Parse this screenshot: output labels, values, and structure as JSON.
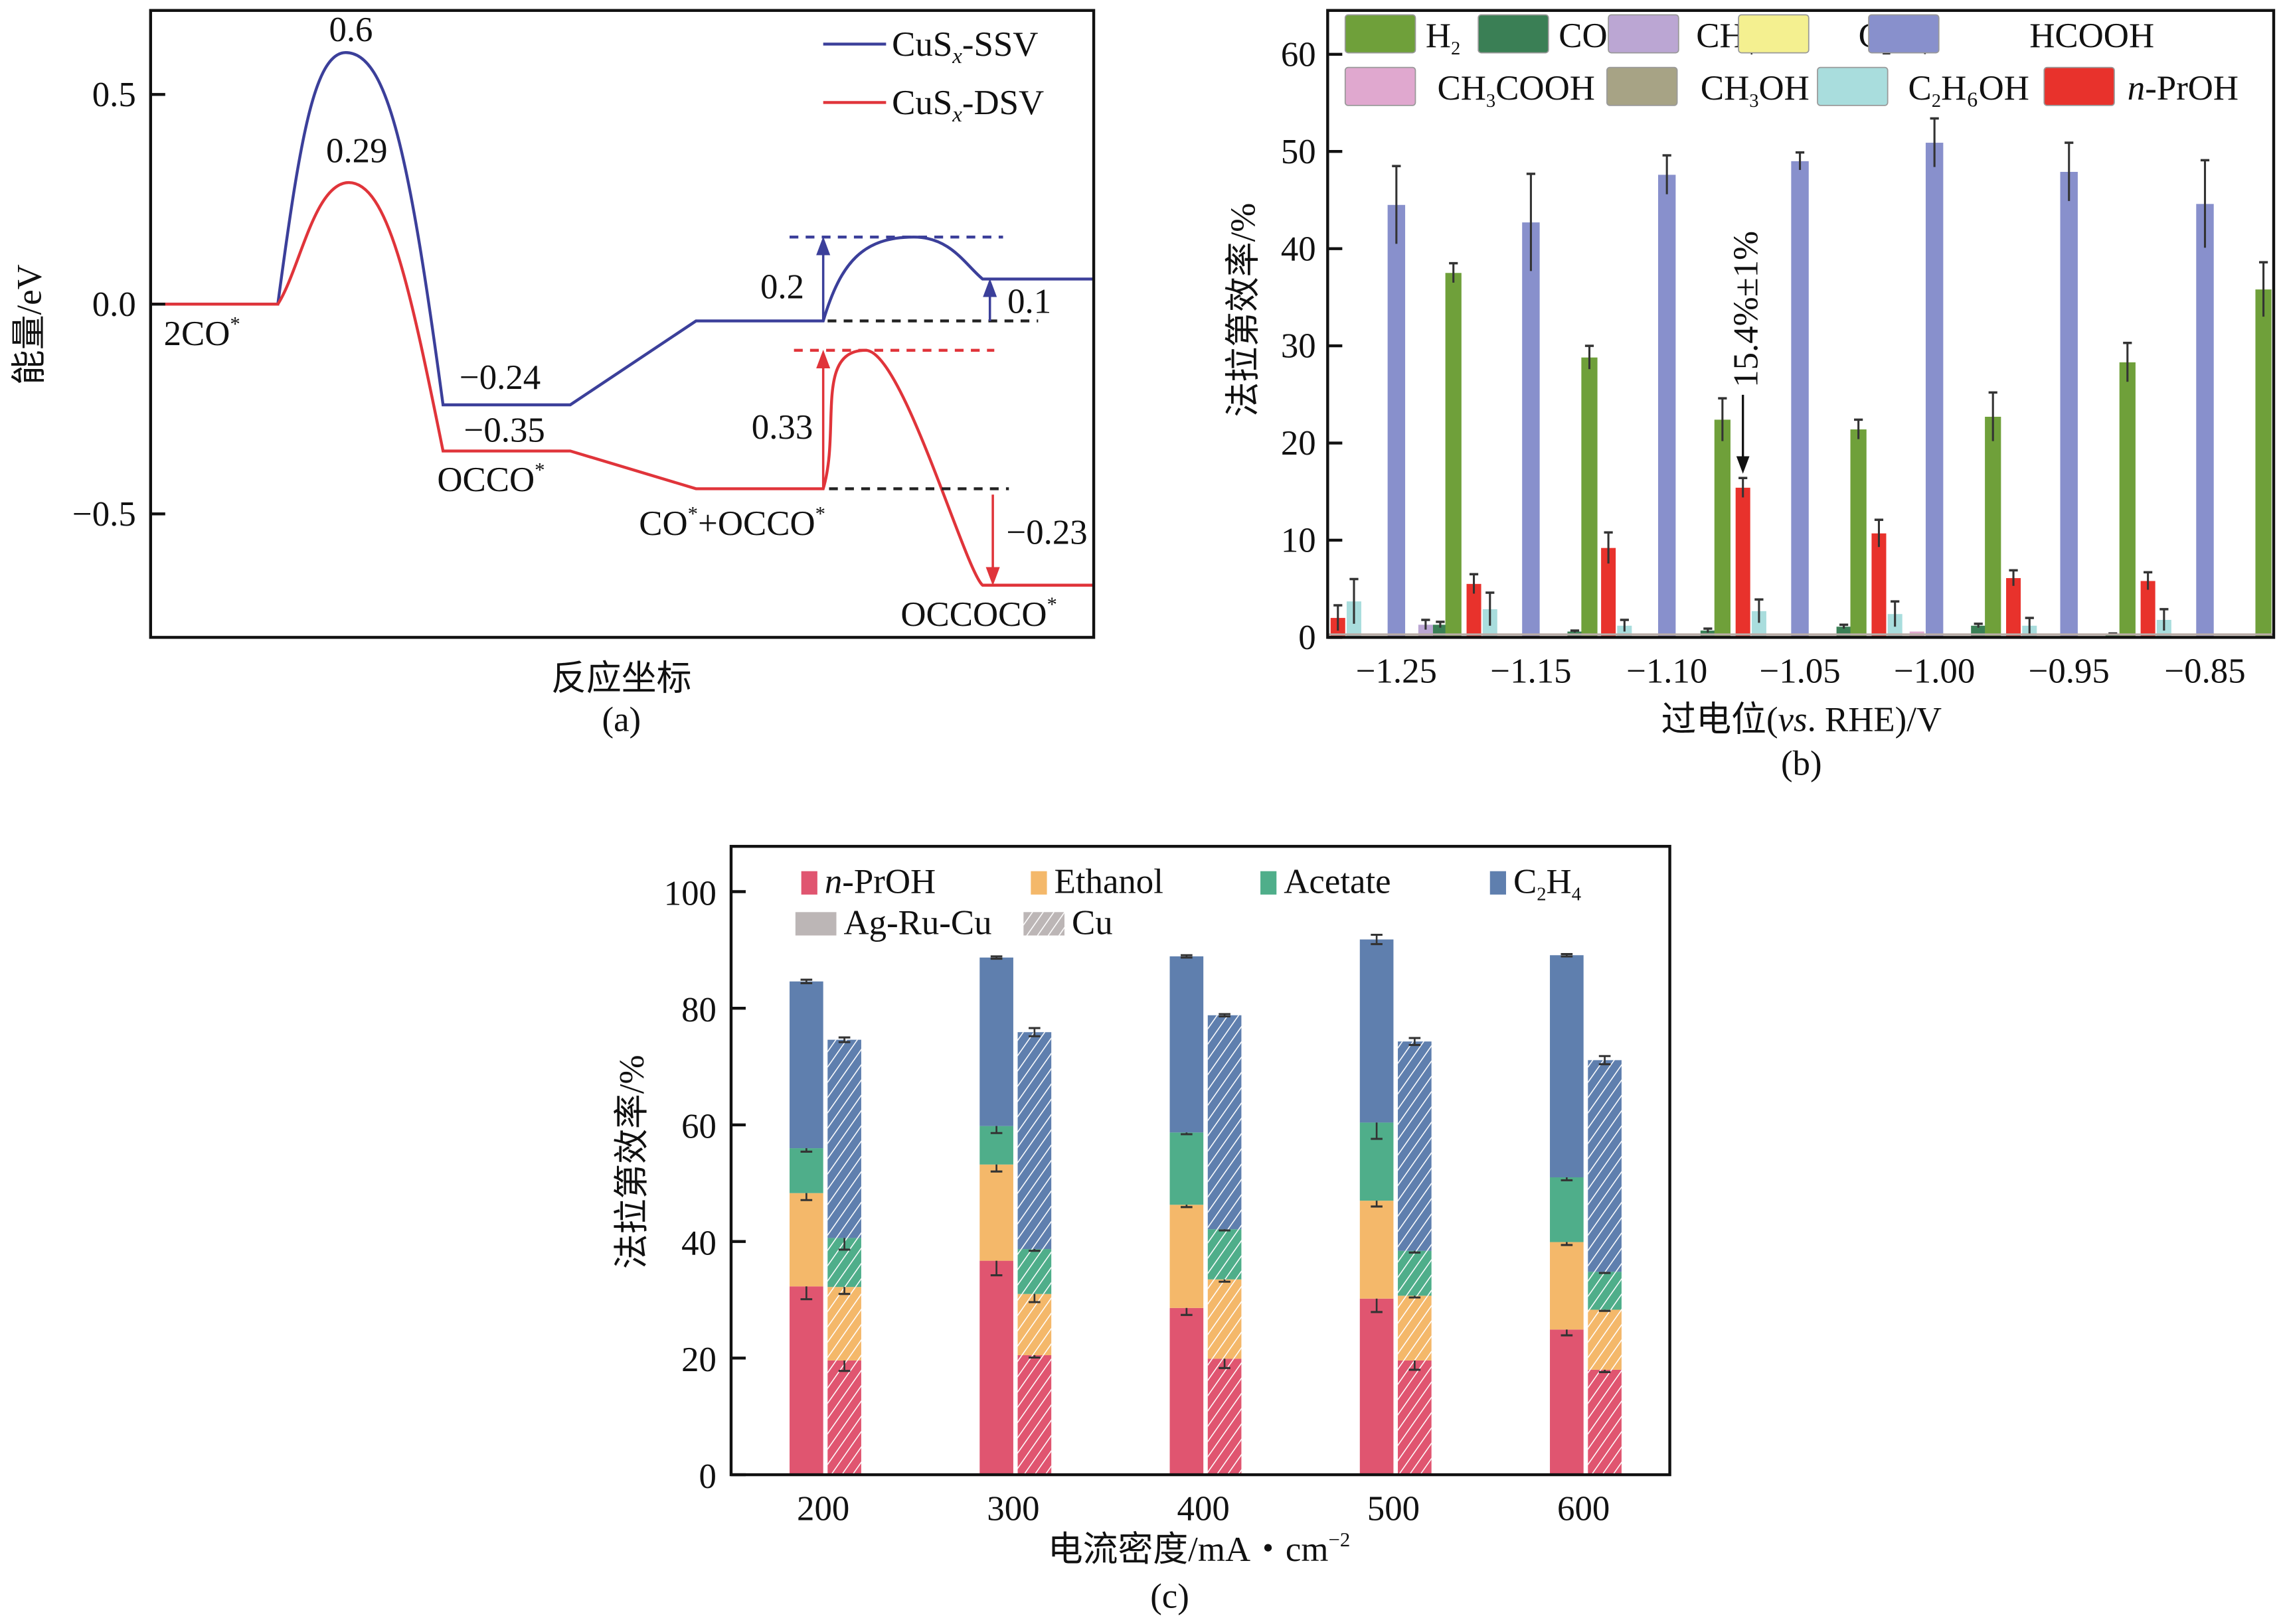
{
  "chart_data": [
    {
      "panel": "(a)",
      "type": "line",
      "title": "",
      "xlabel": "反应坐标",
      "ylabel": "能量/eV",
      "ylim": [
        -0.8,
        0.68
      ],
      "yticks": [
        "0.5",
        "0.0",
        "−0.5"
      ],
      "ytick_values": [
        0.5,
        0.0,
        -0.5
      ],
      "states": [
        "2CO*",
        "OCCO*",
        "CO*+OCCO*",
        "OCCOCO*"
      ],
      "series": [
        {
          "name": "CuSx-SSV",
          "color": "#3b3f9a",
          "levels": {
            "2CO*": 0.0,
            "TS1": 0.6,
            "OCCO*": -0.24,
            "CO*+OCCO*": -0.04,
            "TS2": 0.16,
            "OCCOCO*": 0.06
          }
        },
        {
          "name": "CuSx-DSV",
          "color": "#e0343a",
          "levels": {
            "2CO*": 0.0,
            "TS1": 0.29,
            "OCCO*": -0.35,
            "CO*+OCCO*": -0.44,
            "TS2": -0.11,
            "OCCOCO*": -0.67
          }
        }
      ],
      "annotations": [
        {
          "text": "0.6",
          "color": "#3b3f9a"
        },
        {
          "text": "0.29",
          "color": "#e0343a"
        },
        {
          "text": "−0.24",
          "color": "#3b3f9a"
        },
        {
          "text": "−0.35",
          "color": "#e0343a"
        },
        {
          "text": "0.2",
          "color": "#3b3f9a"
        },
        {
          "text": "0.1",
          "color": "#3b3f9a"
        },
        {
          "text": "0.33",
          "color": "#e0343a"
        },
        {
          "text": "−0.23",
          "color": "#e0343a"
        }
      ],
      "state_labels": {
        "s1": "2CO",
        "s2": "OCCO",
        "s3a": "CO",
        "s3b": "+OCCO",
        "s4": "OCCOCO",
        "star": "*"
      },
      "legend": [
        {
          "prefix": "CuS",
          "sub": "x",
          "suffix": "-SSV",
          "color": "#3b3f9a"
        },
        {
          "prefix": "CuS",
          "sub": "x",
          "suffix": "-DSV",
          "color": "#e0343a"
        }
      ],
      "legend_position": "top-right",
      "caption": "(a)"
    },
    {
      "panel": "(b)",
      "type": "bar",
      "xlabel_parts": {
        "pre": "过电位(",
        "italic": "vs",
        "post": ". RHE)/V"
      },
      "ylabel": "法拉第效率/%",
      "ylim": [
        0,
        64.5
      ],
      "yticks": [
        0,
        10,
        20,
        30,
        40,
        50,
        60
      ],
      "xtick_labels": [
        "−1.25",
        "−1.15",
        "−1.10",
        "−1.05",
        "−1.00",
        "−0.95",
        "−0.85"
      ],
      "annotation": "15.4%±1%",
      "legend": [
        {
          "key": "H2",
          "label": "H",
          "sub": "2",
          "tail": "",
          "color": "#6fa03a"
        },
        {
          "key": "CO",
          "label": "CO",
          "sub": "",
          "tail": "",
          "color": "#3a7f55"
        },
        {
          "key": "CH4",
          "label": "CH",
          "sub": "4",
          "tail": "",
          "color": "#bba6d3"
        },
        {
          "key": "C2H4",
          "label": "C",
          "sub": "2",
          "tail": "H₄",
          "color": "#f4f090"
        },
        {
          "key": "HCOOH",
          "label": "HCOOH",
          "sub": "",
          "tail": "",
          "color": "#8890cc"
        },
        {
          "key": "CH3COOH",
          "label": "CH",
          "sub": "3",
          "tail": "COOH",
          "color": "#e0a8cf"
        },
        {
          "key": "CH3OH",
          "label": "CH",
          "sub": "3",
          "tail": "OH",
          "color": "#a7a385"
        },
        {
          "key": "C2H6OH",
          "label": "C",
          "sub": "2",
          "tail": "H₆OH",
          "color": "#a9dddd"
        },
        {
          "key": "n-PrOH",
          "label": "-PrOH",
          "sub": "",
          "tail": "",
          "italic_prefix": "n",
          "color": "#e8322c"
        }
      ],
      "legend_position": "top",
      "bars": [
        {
          "series": "n-PrOH",
          "value": 2.0,
          "err": 1.3
        },
        {
          "series": "C2H6OH",
          "value": 3.7,
          "err": 2.3
        },
        {
          "series": "HCOOH",
          "value": 44.5,
          "err": 4.0
        },
        {
          "series": "CH4",
          "value": 1.3,
          "err": 0.5
        },
        {
          "series": "CO",
          "value": 1.3,
          "err": 0.3
        },
        {
          "series": "H2",
          "value": 37.5,
          "err": 1.0
        },
        {
          "series": "n-PrOH",
          "value": 5.5,
          "err": 1.0
        },
        {
          "series": "C2H6OH",
          "value": 2.9,
          "err": 1.7
        },
        {
          "series": "HCOOH",
          "value": 42.7,
          "err": 5.0
        },
        {
          "series": "CO",
          "value": 0.6,
          "err": 0.1
        },
        {
          "series": "H2",
          "value": 28.8,
          "err": 1.2
        },
        {
          "series": "n-PrOH",
          "value": 9.2,
          "err": 1.6
        },
        {
          "series": "C2H6OH",
          "value": 1.2,
          "err": 0.6
        },
        {
          "series": "HCOOH",
          "value": 47.6,
          "err": 2.0
        },
        {
          "series": "CO",
          "value": 0.7,
          "err": 0.2
        },
        {
          "series": "H2",
          "value": 22.4,
          "err": 2.2
        },
        {
          "series": "n-PrOH",
          "value": 15.4,
          "err": 1.0
        },
        {
          "series": "C2H6OH",
          "value": 2.7,
          "err": 1.2
        },
        {
          "series": "HCOOH",
          "value": 49.0,
          "err": 0.9
        },
        {
          "series": "CO",
          "value": 1.1,
          "err": 0.2
        },
        {
          "series": "H2",
          "value": 21.4,
          "err": 1.0
        },
        {
          "series": "n-PrOH",
          "value": 10.7,
          "err": 1.4
        },
        {
          "series": "C2H6OH",
          "value": 2.4,
          "err": 1.3
        },
        {
          "series": "CH3COOH",
          "value": 0.6,
          "err": 0.0
        },
        {
          "series": "HCOOH",
          "value": 50.9,
          "err": 2.5
        },
        {
          "series": "CO",
          "value": 1.2,
          "err": 0.2
        },
        {
          "series": "H2",
          "value": 22.7,
          "err": 2.5
        },
        {
          "series": "n-PrOH",
          "value": 6.1,
          "err": 0.8
        },
        {
          "series": "C2H6OH",
          "value": 1.2,
          "err": 0.8
        },
        {
          "series": "HCOOH",
          "value": 47.9,
          "err": 3.0
        },
        {
          "series": "CO",
          "value": 0.3,
          "err": 0.1
        },
        {
          "series": "H2",
          "value": 28.3,
          "err": 2.0
        },
        {
          "series": "n-PrOH",
          "value": 5.8,
          "err": 0.9
        },
        {
          "series": "C2H6OH",
          "value": 1.8,
          "err": 1.1
        },
        {
          "series": "HCOOH",
          "value": 44.6,
          "err": 4.5
        },
        {
          "series": "H2",
          "value": 35.8,
          "err": 2.8
        }
      ],
      "caption": "(b)"
    },
    {
      "panel": "(c)",
      "type": "bar",
      "stacked": true,
      "xlabel": "电流密度/mA・cm",
      "xlabel_sup": "−2",
      "ylabel": "法拉第效率/%",
      "ylim": [
        0,
        108
      ],
      "yticks": [
        0,
        20,
        40,
        60,
        80,
        100
      ],
      "categories": [
        "200",
        "300",
        "400",
        "500",
        "600"
      ],
      "legend": [
        {
          "key": "n-PrOH",
          "italic_prefix": "n",
          "label": "-PrOH",
          "color": "#e05570"
        },
        {
          "key": "Ethanol",
          "label": "Ethanol",
          "color": "#f4b86a"
        },
        {
          "key": "Acetate",
          "label": "Acetate",
          "color": "#4fae8a"
        },
        {
          "key": "C2H4",
          "label": "C",
          "sub": "2",
          "tail": "H",
          "sub2": "4",
          "color": "#5f7fae"
        },
        {
          "key": "Ag-Ru-Cu",
          "label": "Ag-Ru-Cu",
          "color": "#bcb6b6"
        },
        {
          "key": "Cu",
          "label": "Cu",
          "color": "#bcb6b6",
          "hatched": true
        }
      ],
      "legend_position": "top",
      "groups": [
        {
          "catalyst": "Ag-Ru-Cu",
          "hatched": false,
          "series": [
            {
              "name": "n-PrOH",
              "values": [
                32.3,
                36.7,
                28.6,
                30.2,
                24.9
              ],
              "err": [
                2.2,
                2.5,
                1.2,
                2.3,
                1.0
              ]
            },
            {
              "name": "Ethanol",
              "values": [
                16.0,
                16.5,
                17.7,
                16.8,
                15.0
              ],
              "err": [
                1.2,
                1.2,
                0.4,
                1.0,
                0.5
              ]
            },
            {
              "name": "Acetate",
              "values": [
                7.7,
                6.6,
                12.4,
                13.4,
                11.1
              ],
              "err": [
                0.6,
                1.2,
                0.3,
                2.8,
                0.5
              ]
            },
            {
              "name": "C2H4",
              "values": [
                28.6,
                28.9,
                30.2,
                31.4,
                38.1
              ],
              "err": [
                0.3,
                0.2,
                0.2,
                0.8,
                0.2
              ]
            }
          ]
        },
        {
          "catalyst": "Cu",
          "hatched": true,
          "series": [
            {
              "name": "n-PrOH",
              "values": [
                19.6,
                20.5,
                19.9,
                19.6,
                18.0
              ],
              "err": [
                1.8,
                0.4,
                1.6,
                1.6,
                0.4
              ]
            },
            {
              "name": "Ethanol",
              "values": [
                12.6,
                10.5,
                13.6,
                11.1,
                10.3
              ],
              "err": [
                1.2,
                1.4,
                0.4,
                0.3,
                0.2
              ]
            },
            {
              "name": "Acetate",
              "values": [
                8.4,
                7.7,
                8.6,
                7.7,
                6.5
              ],
              "err": [
                2.0,
                0.3,
                0.2,
                0.3,
                0.2
              ]
            },
            {
              "name": "C2H4",
              "values": [
                34.0,
                37.2,
                36.7,
                35.9,
                36.3
              ],
              "err": [
                0.4,
                0.7,
                0.2,
                0.6,
                0.7
              ]
            }
          ]
        }
      ],
      "caption": "(c)"
    }
  ]
}
